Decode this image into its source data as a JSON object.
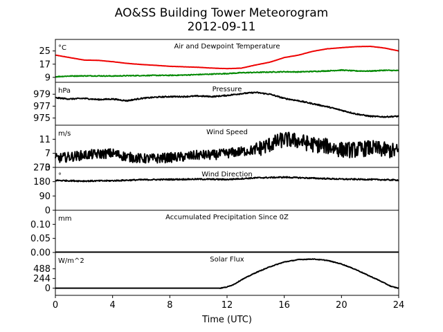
{
  "figure": {
    "title": "AO&SS Building Tower Meteorogram",
    "subtitle": "2012-09-11",
    "xlabel": "Time (UTC)"
  },
  "chart_data": {
    "type": "line",
    "x_domain": [
      0,
      24
    ],
    "x_ticks": [
      0,
      4,
      8,
      12,
      16,
      20,
      24
    ],
    "x_tick_labels": [
      "0",
      "4",
      "8",
      "12",
      "16",
      "20",
      "24"
    ],
    "panels": [
      {
        "key": "temp",
        "title": "Air and Dewpoint Temperature",
        "unit": "°C",
        "ylim": [
          6,
          32
        ],
        "yticks": [
          9,
          17,
          25
        ],
        "ytick_labels": [
          "9",
          "17",
          "25"
        ],
        "series": [
          {
            "color": "#ee0000",
            "x": [
              0,
              1,
              2,
              3,
              4,
              5,
              6,
              7,
              8,
              9,
              10,
              11,
              12,
              13,
              14,
              15,
              16,
              17,
              18,
              19,
              20,
              21,
              22,
              23,
              24
            ],
            "y": [
              22.5,
              21,
              19.5,
              19.3,
              18.5,
              17.5,
              16.8,
              16.3,
              15.7,
              15.4,
              15.1,
              14.6,
              14.3,
              14.6,
              16.5,
              18.2,
              21.0,
              22.5,
              24.8,
              26.3,
              27.0,
              27.6,
              27.8,
              26.8,
              25.0
            ]
          },
          {
            "color": "#008800",
            "x": [
              0,
              1,
              2,
              3,
              4,
              5,
              6,
              7,
              8,
              9,
              10,
              11,
              12,
              13,
              14,
              15,
              16,
              17,
              18,
              19,
              20,
              21,
              22,
              23,
              24
            ],
            "y": [
              9.4,
              9.8,
              9.9,
              9.9,
              9.8,
              10.0,
              10.1,
              10.2,
              10.2,
              10.4,
              10.7,
              11.0,
              11.3,
              11.8,
              12.0,
              12.2,
              12.4,
              12.3,
              12.6,
              12.9,
              13.4,
              12.9,
              12.8,
              13.3,
              13.1
            ]
          }
        ],
        "noise": [
          0.05,
          0.25
        ]
      },
      {
        "key": "pressure",
        "title": "Pressure",
        "unit": "hPa",
        "ylim": [
          973.8,
          981.0
        ],
        "yticks": [
          975,
          977,
          979
        ],
        "ytick_labels": [
          "975",
          "977",
          "979"
        ],
        "series": [
          {
            "color": "#000000",
            "x": [
              0,
              1,
              2,
              3,
              4,
              5,
              6,
              7,
              8,
              9,
              10,
              11,
              12,
              13,
              14,
              15,
              16,
              17,
              18,
              19,
              20,
              21,
              22,
              23,
              24
            ],
            "y": [
              978.4,
              978.2,
              978.3,
              978.1,
              978.2,
              977.9,
              978.3,
              978.5,
              978.6,
              978.6,
              978.7,
              978.6,
              978.8,
              979.1,
              979.3,
              979.0,
              978.3,
              977.9,
              977.4,
              976.9,
              976.3,
              975.7,
              975.3,
              975.2,
              975.3
            ]
          }
        ],
        "noise": [
          0.1
        ]
      },
      {
        "key": "wind_speed",
        "title": "Wind Speed",
        "unit": "m/s",
        "ylim": [
          3,
          15
        ],
        "yticks": [
          3,
          7,
          11
        ],
        "ytick_labels": [
          "3",
          "7",
          "11"
        ],
        "series": [
          {
            "color": "#000000",
            "x": [
              0,
              1,
              2,
              3,
              4,
              5,
              6,
              7,
              8,
              9,
              10,
              11,
              12,
              13,
              14,
              15,
              16,
              17,
              18,
              19,
              20,
              21,
              22,
              23,
              24
            ],
            "y": [
              5.5,
              6.0,
              6.5,
              6.8,
              7.0,
              6.0,
              5.5,
              5.5,
              5.8,
              6.0,
              6.5,
              6.5,
              7.0,
              7.5,
              8.0,
              9.5,
              11.0,
              10.5,
              9.5,
              9.0,
              8.0,
              8.0,
              8.5,
              8.0,
              7.5
            ]
          }
        ],
        "noise": [
          1.4
        ]
      },
      {
        "key": "wind_dir",
        "title": "Wind Direction",
        "unit": "°",
        "ylim": [
          0,
          270
        ],
        "yticks": [
          0,
          90,
          180,
          270
        ],
        "ytick_labels": [
          "0",
          "90",
          "180",
          "270"
        ],
        "series": [
          {
            "color": "#000000",
            "x": [
              0,
              2,
              4,
              6,
              8,
              10,
              12,
              14,
              16,
              18,
              20,
              22,
              24
            ],
            "y": [
              188,
              184,
              186,
              192,
              194,
              196,
              194,
              204,
              208,
              202,
              196,
              194,
              190
            ]
          }
        ],
        "noise": [
          4
        ]
      },
      {
        "key": "precip",
        "title": "Accumulated Precipitation Since 0Z",
        "unit": "mm",
        "ylim": [
          0,
          0.15
        ],
        "yticks": [
          0.0,
          0.05,
          0.1
        ],
        "ytick_labels": [
          "0.00",
          "0.05",
          "0.10"
        ],
        "series": [
          {
            "color": "#000000",
            "x": [
              0,
              24
            ],
            "y": [
              0,
              0
            ]
          }
        ],
        "noise": [
          0
        ]
      },
      {
        "key": "solar",
        "title": "Solar Flux",
        "unit": "W/m^2",
        "ylim": [
          -180,
          900
        ],
        "yticks": [
          0,
          244,
          488
        ],
        "ytick_labels": [
          "0",
          "244",
          "488"
        ],
        "series": [
          {
            "color": "#000000",
            "x": [
              0,
              11.5,
              12,
              12.5,
              13,
              14,
              15,
              16,
              17,
              18,
              19,
              20,
              21,
              22,
              22.5,
              23,
              23.5,
              24
            ],
            "y": [
              0,
              0,
              30,
              100,
              210,
              390,
              540,
              660,
              720,
              735,
              700,
              610,
              470,
              300,
              220,
              130,
              40,
              0
            ]
          }
        ],
        "noise": [
          8
        ]
      }
    ]
  }
}
